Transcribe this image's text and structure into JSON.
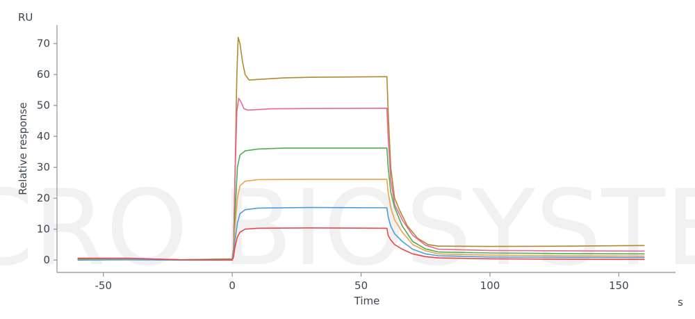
{
  "chart_data": {
    "type": "line",
    "y_unit": "RU",
    "x_unit": "s",
    "xlabel": "Time",
    "ylabel": "Relative response",
    "xlim": [
      -68,
      172
    ],
    "ylim": [
      -4,
      76
    ],
    "x_ticks": [
      -50,
      0,
      50,
      100,
      150
    ],
    "y_ticks": [
      0,
      10,
      20,
      30,
      40,
      50,
      60,
      70
    ],
    "x_tick_labels": [
      "-50",
      "0",
      "50",
      "100",
      "150"
    ],
    "y_tick_labels": [
      "0",
      "10",
      "20",
      "30",
      "40",
      "50",
      "60",
      "70"
    ],
    "grid": false,
    "legend": "none",
    "watermark": "ACRO BIOSYSTEMS",
    "series": [
      {
        "color": "#b08a2e",
        "points": [
          [
            -60,
            0.4
          ],
          [
            -40,
            0.5
          ],
          [
            -20,
            0.1
          ],
          [
            0,
            0.4
          ],
          [
            0.5,
            4
          ],
          [
            1,
            25
          ],
          [
            1.8,
            60
          ],
          [
            2.3,
            72
          ],
          [
            3,
            70
          ],
          [
            4,
            64
          ],
          [
            5,
            60
          ],
          [
            6.5,
            58.2
          ],
          [
            10,
            58.4
          ],
          [
            20,
            58.9
          ],
          [
            30,
            59.1
          ],
          [
            45,
            59.2
          ],
          [
            60,
            59.3
          ],
          [
            60.5,
            48
          ],
          [
            61.5,
            30
          ],
          [
            63,
            20
          ],
          [
            65,
            16
          ],
          [
            68,
            11
          ],
          [
            72,
            7
          ],
          [
            76,
            5
          ],
          [
            80,
            4.5
          ],
          [
            100,
            4.4
          ],
          [
            130,
            4.5
          ],
          [
            160,
            4.7
          ]
        ]
      },
      {
        "color": "#e8669a",
        "points": [
          [
            -60,
            0.3
          ],
          [
            -40,
            0.4
          ],
          [
            -20,
            0.1
          ],
          [
            0,
            0.3
          ],
          [
            0.5,
            4
          ],
          [
            1,
            24
          ],
          [
            1.8,
            48
          ],
          [
            2.5,
            52.3
          ],
          [
            3.5,
            51
          ],
          [
            4.5,
            49
          ],
          [
            6,
            48.5
          ],
          [
            15,
            48.9
          ],
          [
            30,
            49.0
          ],
          [
            60,
            49.1
          ],
          [
            60.5,
            40
          ],
          [
            61.5,
            26
          ],
          [
            63,
            18
          ],
          [
            66,
            13
          ],
          [
            70,
            8
          ],
          [
            75,
            4.8
          ],
          [
            80,
            3.5
          ],
          [
            100,
            3.1
          ],
          [
            130,
            3.0
          ],
          [
            160,
            2.9
          ]
        ]
      },
      {
        "color": "#4caf50",
        "points": [
          [
            -60,
            0.2
          ],
          [
            -40,
            0.3
          ],
          [
            -20,
            0.1
          ],
          [
            0,
            0.2
          ],
          [
            0.5,
            3
          ],
          [
            1,
            14
          ],
          [
            2,
            30
          ],
          [
            3,
            34
          ],
          [
            5,
            35.3
          ],
          [
            10,
            35.9
          ],
          [
            20,
            36.2
          ],
          [
            40,
            36.2
          ],
          [
            60,
            36.2
          ],
          [
            60.5,
            30
          ],
          [
            61.5,
            22
          ],
          [
            63,
            17
          ],
          [
            66,
            11
          ],
          [
            70,
            6
          ],
          [
            75,
            3.6
          ],
          [
            80,
            2.6
          ],
          [
            100,
            2.3
          ],
          [
            130,
            2.1
          ],
          [
            160,
            2.0
          ]
        ]
      },
      {
        "color": "#f0a04b",
        "points": [
          [
            -60,
            0.1
          ],
          [
            -40,
            0.2
          ],
          [
            -20,
            0.0
          ],
          [
            0,
            0.1
          ],
          [
            0.5,
            2
          ],
          [
            1,
            10
          ],
          [
            2,
            20
          ],
          [
            3,
            24
          ],
          [
            5,
            25.5
          ],
          [
            10,
            26.0
          ],
          [
            30,
            26.1
          ],
          [
            60,
            26.1
          ],
          [
            60.5,
            22
          ],
          [
            61.5,
            17
          ],
          [
            63,
            13
          ],
          [
            66,
            9
          ],
          [
            70,
            5
          ],
          [
            75,
            3
          ],
          [
            80,
            2
          ],
          [
            100,
            1.6
          ],
          [
            130,
            1.4
          ],
          [
            160,
            1.3
          ]
        ]
      },
      {
        "color": "#4a9edb",
        "points": [
          [
            -60,
            0.0
          ],
          [
            -40,
            0.1
          ],
          [
            -20,
            0.0
          ],
          [
            0,
            0.0
          ],
          [
            0.5,
            1.5
          ],
          [
            1,
            6
          ],
          [
            2,
            12
          ],
          [
            3,
            15
          ],
          [
            5,
            16.3
          ],
          [
            10,
            16.8
          ],
          [
            30,
            17.0
          ],
          [
            60,
            16.9
          ],
          [
            60.5,
            14
          ],
          [
            61.5,
            11
          ],
          [
            63,
            8.5
          ],
          [
            66,
            6
          ],
          [
            70,
            3.5
          ],
          [
            75,
            2
          ],
          [
            80,
            1.4
          ],
          [
            100,
            1.0
          ],
          [
            130,
            0.9
          ],
          [
            160,
            0.8
          ]
        ]
      },
      {
        "color": "#e8474a",
        "points": [
          [
            -60,
            0.6
          ],
          [
            -40,
            0.6
          ],
          [
            -20,
            0.1
          ],
          [
            0,
            0.0
          ],
          [
            0.5,
            1
          ],
          [
            1,
            4
          ],
          [
            2,
            7.5
          ],
          [
            3,
            9
          ],
          [
            5,
            10
          ],
          [
            10,
            10.3
          ],
          [
            30,
            10.4
          ],
          [
            60,
            10.3
          ],
          [
            60.5,
            8
          ],
          [
            61.5,
            6.5
          ],
          [
            63,
            5
          ],
          [
            66,
            3.5
          ],
          [
            70,
            2
          ],
          [
            75,
            1.1
          ],
          [
            80,
            0.7
          ],
          [
            100,
            0.4
          ],
          [
            130,
            0.3
          ],
          [
            160,
            0.2
          ]
        ]
      }
    ]
  }
}
